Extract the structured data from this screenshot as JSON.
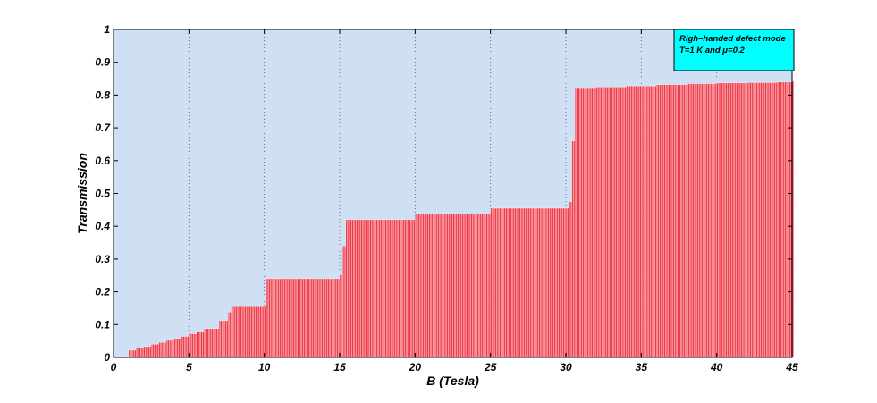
{
  "chart_data": {
    "type": "bar",
    "title": "",
    "xlabel": "B (Tesla)",
    "ylabel": "Transmission",
    "xlim": [
      0,
      45
    ],
    "ylim": [
      0,
      1
    ],
    "x_ticks": [
      0,
      5,
      10,
      15,
      20,
      25,
      30,
      35,
      40,
      45
    ],
    "y_ticks": [
      0,
      0.1,
      0.2,
      0.3,
      0.4,
      0.5,
      0.6,
      0.7,
      0.8,
      0.9,
      1
    ],
    "grid": "vertical dotted",
    "background_color": "#cfe0f5",
    "bar_color": "#f03c4a",
    "bar_edge_color": "#ffffff",
    "legend": {
      "position": "top-right",
      "background_color": "#00ffff",
      "lines": [
        "Righ–handed defect mode",
        "T=1 K and μ=0.2"
      ]
    },
    "series": [
      {
        "x": [
          1.0,
          1.5,
          2.0,
          2.5,
          3.0,
          3.5,
          4.0,
          4.5,
          5.0,
          5.5,
          6.0,
          7.0,
          7.6,
          7.8,
          10.1,
          15.0,
          15.2,
          15.4,
          20.0,
          25.0,
          30.2,
          30.4,
          30.6,
          32.0,
          34.0,
          36.0,
          38.0,
          40.0,
          42.0,
          44.0,
          45.0
        ],
        "values": [
          0.022,
          0.028,
          0.033,
          0.04,
          0.046,
          0.052,
          0.058,
          0.064,
          0.072,
          0.08,
          0.088,
          0.112,
          0.138,
          0.155,
          0.24,
          0.252,
          0.34,
          0.42,
          0.437,
          0.455,
          0.475,
          0.66,
          0.82,
          0.825,
          0.828,
          0.832,
          0.835,
          0.837,
          0.838,
          0.84,
          0.842
        ]
      }
    ]
  }
}
